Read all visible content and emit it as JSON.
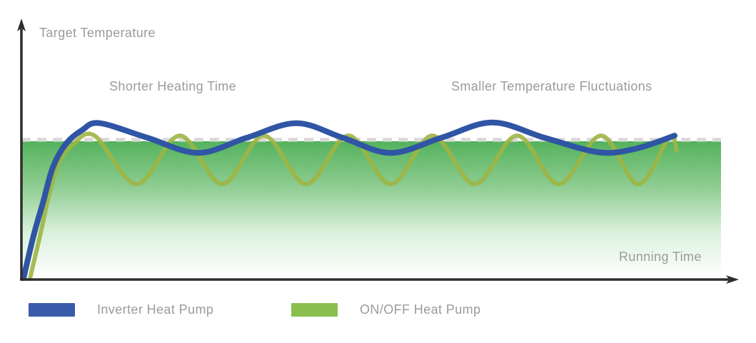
{
  "chart_data": {
    "type": "line",
    "title": "",
    "ylabel": "Target Temperature",
    "xlabel": "Running Time",
    "x_range": [
      0,
      100
    ],
    "y_range": [
      0,
      120
    ],
    "grid": false,
    "legend_position": "bottom",
    "annotations": [
      {
        "text": "Shorter Heating Time",
        "x": 18,
        "y": 118
      },
      {
        "text": "Smaller Temperature Fluctuations",
        "x": 70,
        "y": 118
      }
    ],
    "target_line": {
      "label": "Target Temperature",
      "value": 100,
      "style": "dashed",
      "color": "#d9d9d9"
    },
    "fill_gradient": [
      "#54b25d",
      "#8fcd92",
      "#dcf1dd",
      "#ffffff"
    ],
    "series": [
      {
        "name": "Inverter Heat Pump",
        "legend_color": "#3a5ba9",
        "line_color": "#2f55a4",
        "line_opacity": 1,
        "line_width": 8,
        "points": [
          [
            0,
            0
          ],
          [
            1.5,
            30
          ],
          [
            3,
            55
          ],
          [
            4.5,
            80
          ],
          [
            6.5,
            97
          ],
          [
            9,
            107
          ],
          [
            11.7,
            112
          ],
          [
            19,
            101.5
          ],
          [
            26.8,
            90.5
          ],
          [
            34.3,
            101.5
          ],
          [
            41.9,
            112
          ],
          [
            49,
            101.5
          ],
          [
            56.4,
            90.5
          ],
          [
            64.2,
            101.5
          ],
          [
            72,
            112.5
          ],
          [
            80,
            101.5
          ],
          [
            88.3,
            91
          ],
          [
            94,
            93.5
          ],
          [
            100,
            103
          ]
        ]
      },
      {
        "name": "ON/OFF Heat Pump",
        "legend_color": "#8abf4e",
        "line_color": "#9db544",
        "line_opacity": 0.9,
        "line_width": 6,
        "points": [
          [
            1,
            0
          ],
          [
            2.5,
            30
          ],
          [
            4,
            62
          ],
          [
            5.5,
            84
          ],
          [
            7.5,
            96
          ],
          [
            10.9,
            103
          ],
          [
            17.4,
            68
          ],
          [
            24,
            103
          ],
          [
            30.5,
            68
          ],
          [
            36.9,
            103
          ],
          [
            43.4,
            68
          ],
          [
            49.9,
            103
          ],
          [
            56.4,
            68
          ],
          [
            62.8,
            103
          ],
          [
            69.3,
            68
          ],
          [
            75.8,
            103
          ],
          [
            82.2,
            68
          ],
          [
            88.7,
            103
          ],
          [
            94.4,
            68
          ],
          [
            99.2,
            102
          ],
          [
            100.3,
            92
          ]
        ]
      }
    ]
  },
  "legend": {
    "items": [
      {
        "label": "Inverter Heat Pump",
        "color": "#3a5ba9"
      },
      {
        "label": "ON/OFF Heat Pump",
        "color": "#8abf4e"
      }
    ]
  }
}
